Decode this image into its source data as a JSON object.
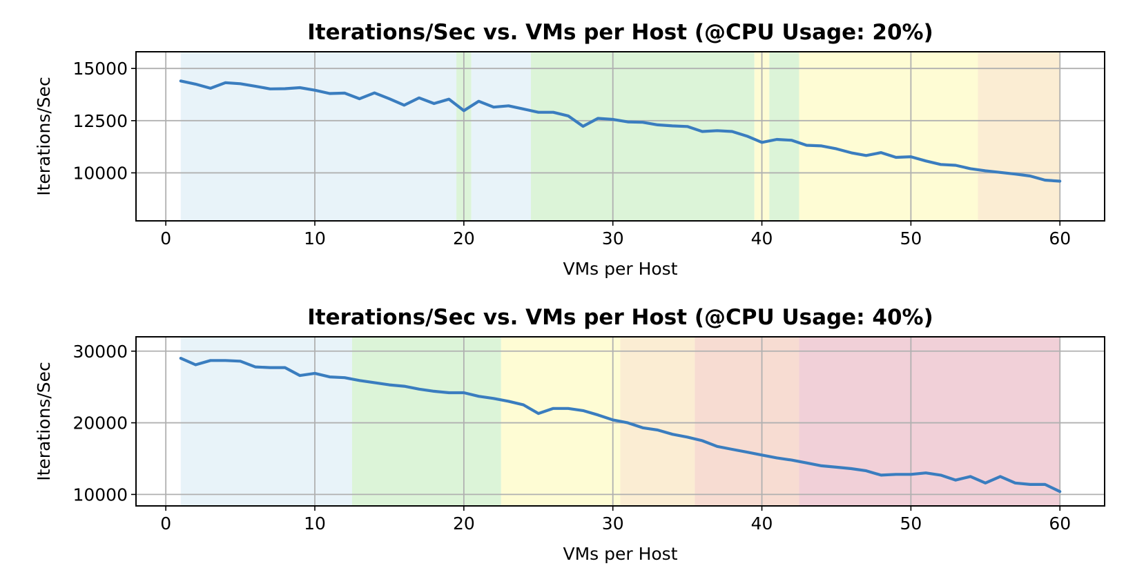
{
  "chart_data": [
    {
      "type": "line",
      "title": "Iterations/Sec vs. VMs per Host (@CPU Usage: 20%)",
      "xlabel": "VMs per Host",
      "ylabel": "Iterations/Sec",
      "xlim": [
        -2,
        63
      ],
      "ylim": [
        7700,
        15800
      ],
      "xticks": [
        0,
        10,
        20,
        30,
        40,
        50,
        60
      ],
      "yticks": [
        10000,
        12500,
        15000
      ],
      "grid": true,
      "background_bands": [
        {
          "from": 1,
          "to": 19.5,
          "color": "#e8f3f9"
        },
        {
          "from": 19.5,
          "to": 20.5,
          "color": "#dcf4d8"
        },
        {
          "from": 20.5,
          "to": 24.5,
          "color": "#e8f3f9"
        },
        {
          "from": 24.5,
          "to": 39.5,
          "color": "#dcf4d8"
        },
        {
          "from": 39.5,
          "to": 40.5,
          "color": "#fefcd4"
        },
        {
          "from": 40.5,
          "to": 42.5,
          "color": "#dcf4d8"
        },
        {
          "from": 42.5,
          "to": 54.5,
          "color": "#fefcd4"
        },
        {
          "from": 54.5,
          "to": 60,
          "color": "#fbedd3"
        }
      ],
      "series": [
        {
          "color": "#3a7dbf",
          "x": [
            1,
            2,
            3,
            4,
            5,
            6,
            7,
            8,
            9,
            10,
            11,
            12,
            13,
            14,
            15,
            16,
            17,
            18,
            19,
            20,
            21,
            22,
            23,
            24,
            25,
            26,
            27,
            28,
            29,
            30,
            31,
            32,
            33,
            34,
            35,
            36,
            37,
            38,
            39,
            40,
            41,
            42,
            43,
            44,
            45,
            46,
            47,
            48,
            49,
            50,
            51,
            52,
            53,
            54,
            55,
            56,
            57,
            58,
            59,
            60
          ],
          "y": [
            14400,
            14250,
            14050,
            14320,
            14270,
            14150,
            14020,
            14030,
            14080,
            13960,
            13800,
            13820,
            13550,
            13830,
            13550,
            13240,
            13590,
            13320,
            13530,
            12980,
            13430,
            13150,
            13210,
            13060,
            12900,
            12900,
            12730,
            12230,
            12610,
            12560,
            12440,
            12420,
            12300,
            12250,
            12220,
            11980,
            12020,
            11980,
            11760,
            11460,
            11600,
            11560,
            11320,
            11290,
            11150,
            10960,
            10830,
            10970,
            10740,
            10770,
            10570,
            10400,
            10360,
            10200,
            10100,
            10020,
            9940,
            9850,
            9650,
            9600
          ]
        }
      ]
    },
    {
      "type": "line",
      "title": "Iterations/Sec vs. VMs per Host (@CPU Usage: 40%)",
      "xlabel": "VMs per Host",
      "ylabel": "Iterations/Sec",
      "xlim": [
        -2,
        63
      ],
      "ylim": [
        8400,
        32000
      ],
      "xticks": [
        0,
        10,
        20,
        30,
        40,
        50,
        60
      ],
      "yticks": [
        10000,
        20000,
        30000
      ],
      "grid": true,
      "background_bands": [
        {
          "from": 1,
          "to": 12.5,
          "color": "#e8f3f9"
        },
        {
          "from": 12.5,
          "to": 22.5,
          "color": "#dcf4d8"
        },
        {
          "from": 22.5,
          "to": 30.5,
          "color": "#fefcd4"
        },
        {
          "from": 30.5,
          "to": 35.5,
          "color": "#fbedd3"
        },
        {
          "from": 35.5,
          "to": 42.5,
          "color": "#f7dcd2"
        },
        {
          "from": 42.5,
          "to": 60,
          "color": "#f1d0d8"
        }
      ],
      "series": [
        {
          "color": "#3a7dbf",
          "x": [
            1,
            2,
            3,
            4,
            5,
            6,
            7,
            8,
            9,
            10,
            11,
            12,
            13,
            14,
            15,
            16,
            17,
            18,
            19,
            20,
            21,
            22,
            23,
            24,
            25,
            26,
            27,
            28,
            29,
            30,
            31,
            32,
            33,
            34,
            35,
            36,
            37,
            38,
            39,
            40,
            41,
            42,
            43,
            44,
            45,
            46,
            47,
            48,
            49,
            50,
            51,
            52,
            53,
            54,
            55,
            56,
            57,
            58,
            59,
            60
          ],
          "y": [
            29000,
            28100,
            28700,
            28700,
            28600,
            27800,
            27700,
            27700,
            26600,
            26900,
            26400,
            26300,
            25900,
            25600,
            25300,
            25100,
            24700,
            24400,
            24200,
            24200,
            23700,
            23400,
            23000,
            22500,
            21300,
            22000,
            22000,
            21700,
            21100,
            20400,
            20000,
            19300,
            19000,
            18400,
            18000,
            17500,
            16700,
            16300,
            15900,
            15500,
            15100,
            14800,
            14400,
            14000,
            13800,
            13600,
            13300,
            12700,
            12800,
            12800,
            13000,
            12700,
            12000,
            12500,
            11600,
            12500,
            11600,
            11400,
            11400,
            10400
          ]
        }
      ]
    }
  ]
}
